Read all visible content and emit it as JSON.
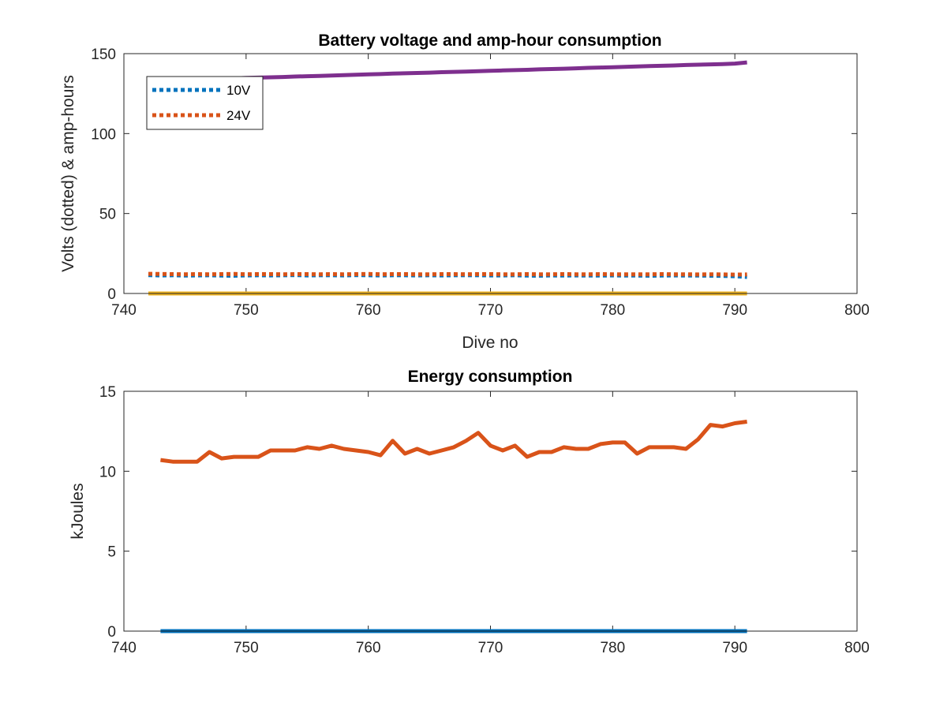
{
  "chart_data": [
    {
      "type": "line",
      "title": "Battery voltage and amp-hour consumption",
      "xlabel": "Dive no",
      "ylabel": "Volts (dotted) & amp-hours",
      "xlim": [
        740,
        800
      ],
      "ylim": [
        0,
        150
      ],
      "xticks": [
        740,
        750,
        760,
        770,
        780,
        790,
        800
      ],
      "yticks": [
        0,
        50,
        100,
        150
      ],
      "grid": false,
      "legend": "top-left",
      "x": [
        742,
        743,
        744,
        745,
        746,
        747,
        748,
        749,
        750,
        751,
        752,
        753,
        754,
        755,
        756,
        757,
        758,
        759,
        760,
        761,
        762,
        763,
        764,
        765,
        766,
        767,
        768,
        769,
        770,
        771,
        772,
        773,
        774,
        775,
        776,
        777,
        778,
        779,
        780,
        781,
        782,
        783,
        784,
        785,
        786,
        787,
        788,
        789,
        790,
        791
      ],
      "series": [
        {
          "name": "10V",
          "style": "dotted",
          "color": "#0072BD",
          "values": [
            11.5,
            11.3,
            11.4,
            11.2,
            11.3,
            11.4,
            11.2,
            11.1,
            11.3,
            11.4,
            11.3,
            11.4,
            11.5,
            11.3,
            11.4,
            11.4,
            11.3,
            11.5,
            11.4,
            11.3,
            11.4,
            11.4,
            11.3,
            11.4,
            11.3,
            11.4,
            11.4,
            11.4,
            11.3,
            11.3,
            11.4,
            11.2,
            11.1,
            11.3,
            11.2,
            11.3,
            11.2,
            11.2,
            11.3,
            11.2,
            11.2,
            11.1,
            11.2,
            11.3,
            11.2,
            11.2,
            11.1,
            11.0,
            10.8,
            10.3
          ]
        },
        {
          "name": "24V",
          "style": "dotted",
          "color": "#D95319",
          "values": [
            12.3,
            12.2,
            12.1,
            12.0,
            12.1,
            12.0,
            12.1,
            12.2,
            12.0,
            12.1,
            12.1,
            12.0,
            12.1,
            12.1,
            12.0,
            12.1,
            12.0,
            12.1,
            12.2,
            12.0,
            12.1,
            12.1,
            12.0,
            12.0,
            12.1,
            12.1,
            12.0,
            12.1,
            12.1,
            12.0,
            12.0,
            12.1,
            12.0,
            12.0,
            12.1,
            12.0,
            12.0,
            12.1,
            12.0,
            12.0,
            12.0,
            12.0,
            12.1,
            12.0,
            12.0,
            11.9,
            12.0,
            11.9,
            11.8,
            11.9
          ]
        },
        {
          "style": "solid",
          "color": "#EDB120",
          "values": [
            0,
            0,
            0,
            0,
            0,
            0,
            0,
            0,
            0,
            0,
            0,
            0,
            0,
            0,
            0,
            0,
            0,
            0,
            0,
            0,
            0,
            0,
            0,
            0,
            0,
            0,
            0,
            0,
            0,
            0,
            0,
            0,
            0,
            0,
            0,
            0,
            0,
            0,
            0,
            0,
            0,
            0,
            0,
            0,
            0,
            0,
            0,
            0,
            0,
            0
          ]
        },
        {
          "style": "solid",
          "color": "#7E2F8E",
          "values": [
            133.0,
            133.2,
            133.4,
            133.7,
            133.9,
            134.1,
            134.3,
            134.5,
            134.8,
            135.0,
            135.2,
            135.4,
            135.7,
            135.9,
            136.1,
            136.3,
            136.6,
            136.8,
            137.0,
            137.2,
            137.5,
            137.7,
            137.9,
            138.1,
            138.4,
            138.6,
            138.8,
            139.0,
            139.3,
            139.5,
            139.7,
            139.9,
            140.2,
            140.4,
            140.6,
            140.8,
            141.1,
            141.3,
            141.5,
            141.7,
            142.0,
            142.2,
            142.4,
            142.6,
            142.9,
            143.1,
            143.3,
            143.5,
            143.8,
            144.5
          ]
        }
      ]
    },
    {
      "type": "line",
      "title": "Energy consumption",
      "xlabel": "",
      "ylabel": "kJoules",
      "xlim": [
        740,
        800
      ],
      "ylim": [
        0,
        15
      ],
      "xticks": [
        740,
        750,
        760,
        770,
        780,
        790,
        800
      ],
      "yticks": [
        0,
        5,
        10,
        15
      ],
      "grid": false,
      "x": [
        743,
        744,
        745,
        746,
        747,
        748,
        749,
        750,
        751,
        752,
        753,
        754,
        755,
        756,
        757,
        758,
        759,
        760,
        761,
        762,
        763,
        764,
        765,
        766,
        767,
        768,
        769,
        770,
        771,
        772,
        773,
        774,
        775,
        776,
        777,
        778,
        779,
        780,
        781,
        782,
        783,
        784,
        785,
        786,
        787,
        788,
        789,
        790,
        791
      ],
      "series": [
        {
          "style": "solid",
          "color": "#0072BD",
          "values": [
            0,
            0,
            0,
            0,
            0,
            0,
            0,
            0,
            0,
            0,
            0,
            0,
            0,
            0,
            0,
            0,
            0,
            0,
            0,
            0,
            0,
            0,
            0,
            0,
            0,
            0,
            0,
            0,
            0,
            0,
            0,
            0,
            0,
            0,
            0,
            0,
            0,
            0,
            0,
            0,
            0,
            0,
            0,
            0,
            0,
            0,
            0,
            0,
            0
          ]
        },
        {
          "style": "solid",
          "color": "#D95319",
          "values": [
            10.7,
            10.6,
            10.6,
            10.6,
            11.2,
            10.8,
            10.9,
            10.9,
            10.9,
            11.3,
            11.3,
            11.3,
            11.5,
            11.4,
            11.6,
            11.4,
            11.3,
            11.2,
            11.0,
            11.9,
            11.1,
            11.4,
            11.1,
            11.3,
            11.5,
            11.9,
            12.4,
            11.6,
            11.3,
            11.6,
            10.9,
            11.2,
            11.2,
            11.5,
            11.4,
            11.4,
            11.7,
            11.8,
            11.8,
            11.1,
            11.5,
            11.5,
            11.5,
            11.4,
            12.0,
            12.9,
            12.8,
            13.0,
            13.1
          ]
        }
      ]
    }
  ]
}
